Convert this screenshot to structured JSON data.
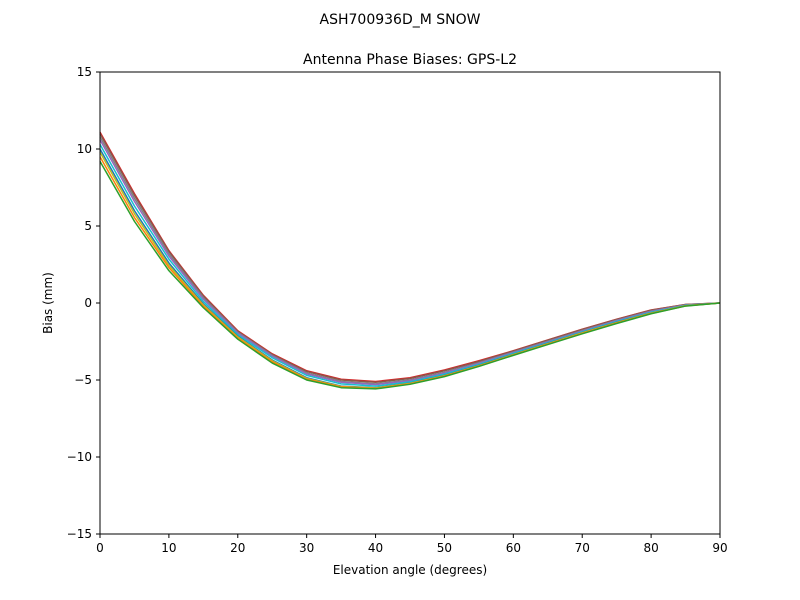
{
  "chart_data": {
    "type": "line",
    "suptitle": "ASH700936D_M    SNOW",
    "title": "Antenna Phase Biases: GPS-L2",
    "xlabel": "Elevation angle (degrees)",
    "ylabel": "Bias (mm)",
    "xlim": [
      0,
      90
    ],
    "ylim": [
      -15,
      15
    ],
    "xticks": [
      0,
      10,
      20,
      30,
      40,
      50,
      60,
      70,
      80,
      90
    ],
    "yticks": [
      -15,
      -10,
      -5,
      0,
      5,
      10,
      15
    ],
    "grid": false,
    "legend": "none",
    "x": [
      0,
      5,
      10,
      15,
      20,
      25,
      30,
      35,
      40,
      45,
      50,
      55,
      60,
      65,
      70,
      75,
      80,
      85,
      90
    ],
    "series": [
      {
        "color": "#d62728",
        "values": [
          11.1,
          7.1,
          3.4,
          0.5,
          -1.8,
          -3.3,
          -4.4,
          -4.95,
          -5.1,
          -4.85,
          -4.35,
          -3.75,
          -3.1,
          -2.4,
          -1.7,
          -1.05,
          -0.45,
          -0.1,
          0.0
        ]
      },
      {
        "color": "#8c564b",
        "values": [
          11.0,
          7.0,
          3.35,
          0.45,
          -1.85,
          -3.35,
          -4.45,
          -5.0,
          -5.15,
          -4.9,
          -4.4,
          -3.8,
          -3.12,
          -2.42,
          -1.72,
          -1.07,
          -0.47,
          -0.1,
          0.0
        ]
      },
      {
        "color": "#7f7f7f",
        "values": [
          10.8,
          6.8,
          3.2,
          0.35,
          -1.9,
          -3.4,
          -4.55,
          -5.1,
          -5.25,
          -5.0,
          -4.5,
          -3.88,
          -3.18,
          -2.48,
          -1.78,
          -1.12,
          -0.52,
          -0.12,
          0.0
        ]
      },
      {
        "color": "#9467bd",
        "values": [
          10.6,
          6.6,
          3.05,
          0.25,
          -1.95,
          -3.45,
          -4.6,
          -5.15,
          -5.3,
          -5.05,
          -4.55,
          -3.92,
          -3.22,
          -2.52,
          -1.82,
          -1.15,
          -0.55,
          -0.13,
          0.0
        ]
      },
      {
        "color": "#17becf",
        "values": [
          10.3,
          6.3,
          2.85,
          0.1,
          -2.05,
          -3.55,
          -4.7,
          -5.25,
          -5.4,
          -5.12,
          -4.62,
          -3.98,
          -3.27,
          -2.57,
          -1.87,
          -1.2,
          -0.6,
          -0.15,
          0.0
        ]
      },
      {
        "color": "#1f77b4",
        "values": [
          10.0,
          6.0,
          2.6,
          -0.05,
          -2.15,
          -3.7,
          -4.85,
          -5.4,
          -5.5,
          -5.2,
          -4.7,
          -4.05,
          -3.33,
          -2.62,
          -1.92,
          -1.25,
          -0.65,
          -0.18,
          0.0
        ]
      },
      {
        "color": "#bcbd22",
        "values": [
          9.8,
          5.8,
          2.45,
          -0.12,
          -2.2,
          -3.75,
          -4.9,
          -5.42,
          -5.52,
          -5.22,
          -4.72,
          -4.07,
          -3.35,
          -2.64,
          -1.94,
          -1.27,
          -0.66,
          -0.18,
          0.0
        ]
      },
      {
        "color": "#ff7f0e",
        "values": [
          9.5,
          5.55,
          2.3,
          -0.2,
          -2.28,
          -3.82,
          -4.95,
          -5.45,
          -5.55,
          -5.25,
          -4.75,
          -4.1,
          -3.38,
          -2.67,
          -1.97,
          -1.3,
          -0.68,
          -0.19,
          0.0
        ]
      },
      {
        "color": "#2ca02c",
        "values": [
          9.2,
          5.3,
          2.1,
          -0.3,
          -2.35,
          -3.9,
          -5.0,
          -5.5,
          -5.58,
          -5.28,
          -4.78,
          -4.12,
          -3.4,
          -2.7,
          -2.0,
          -1.33,
          -0.7,
          -0.2,
          0.0
        ]
      }
    ]
  }
}
